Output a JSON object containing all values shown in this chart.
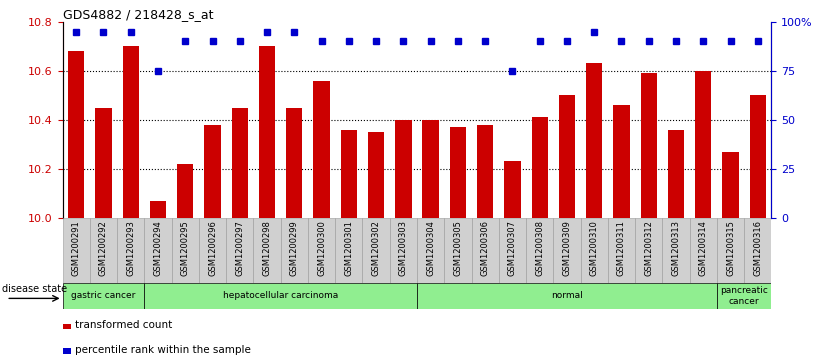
{
  "title": "GDS4882 / 218428_s_at",
  "samples": [
    "GSM1200291",
    "GSM1200292",
    "GSM1200293",
    "GSM1200294",
    "GSM1200295",
    "GSM1200296",
    "GSM1200297",
    "GSM1200298",
    "GSM1200299",
    "GSM1200300",
    "GSM1200301",
    "GSM1200302",
    "GSM1200303",
    "GSM1200304",
    "GSM1200305",
    "GSM1200306",
    "GSM1200307",
    "GSM1200308",
    "GSM1200309",
    "GSM1200310",
    "GSM1200311",
    "GSM1200312",
    "GSM1200313",
    "GSM1200314",
    "GSM1200315",
    "GSM1200316"
  ],
  "red_values": [
    10.68,
    10.45,
    10.7,
    10.07,
    10.22,
    10.38,
    10.45,
    10.7,
    10.45,
    10.56,
    10.36,
    10.35,
    10.4,
    10.4,
    10.37,
    10.38,
    10.23,
    10.41,
    10.5,
    10.63,
    10.46,
    10.59,
    10.36,
    10.6,
    10.27,
    10.5
  ],
  "blue_values": [
    95,
    95,
    95,
    75,
    90,
    90,
    90,
    95,
    95,
    90,
    90,
    90,
    90,
    90,
    90,
    90,
    75,
    90,
    90,
    95,
    90,
    90,
    90,
    90,
    90,
    90
  ],
  "ylim_left": [
    10.0,
    10.8
  ],
  "ylim_right": [
    0,
    100
  ],
  "yticks_left": [
    10.0,
    10.2,
    10.4,
    10.6,
    10.8
  ],
  "yticks_right": [
    0,
    25,
    50,
    75,
    100
  ],
  "ytick_right_labels": [
    "0",
    "25",
    "50",
    "75",
    "100%"
  ],
  "bar_color": "#cc0000",
  "blue_color": "#0000cc",
  "disease_groups": [
    {
      "label": "gastric cancer",
      "start": 0,
      "end": 3
    },
    {
      "label": "hepatocellular carcinoma",
      "start": 3,
      "end": 13
    },
    {
      "label": "normal",
      "start": 13,
      "end": 24
    },
    {
      "label": "pancreatic\ncancer",
      "start": 24,
      "end": 26
    }
  ],
  "disease_state_label": "disease state",
  "legend_red": "transformed count",
  "legend_blue": "percentile rank within the sample",
  "bg_color": "#ffffff",
  "tick_label_bg": "#d0d0d0",
  "grid_linestyle": ":",
  "grid_linewidth": 0.8
}
